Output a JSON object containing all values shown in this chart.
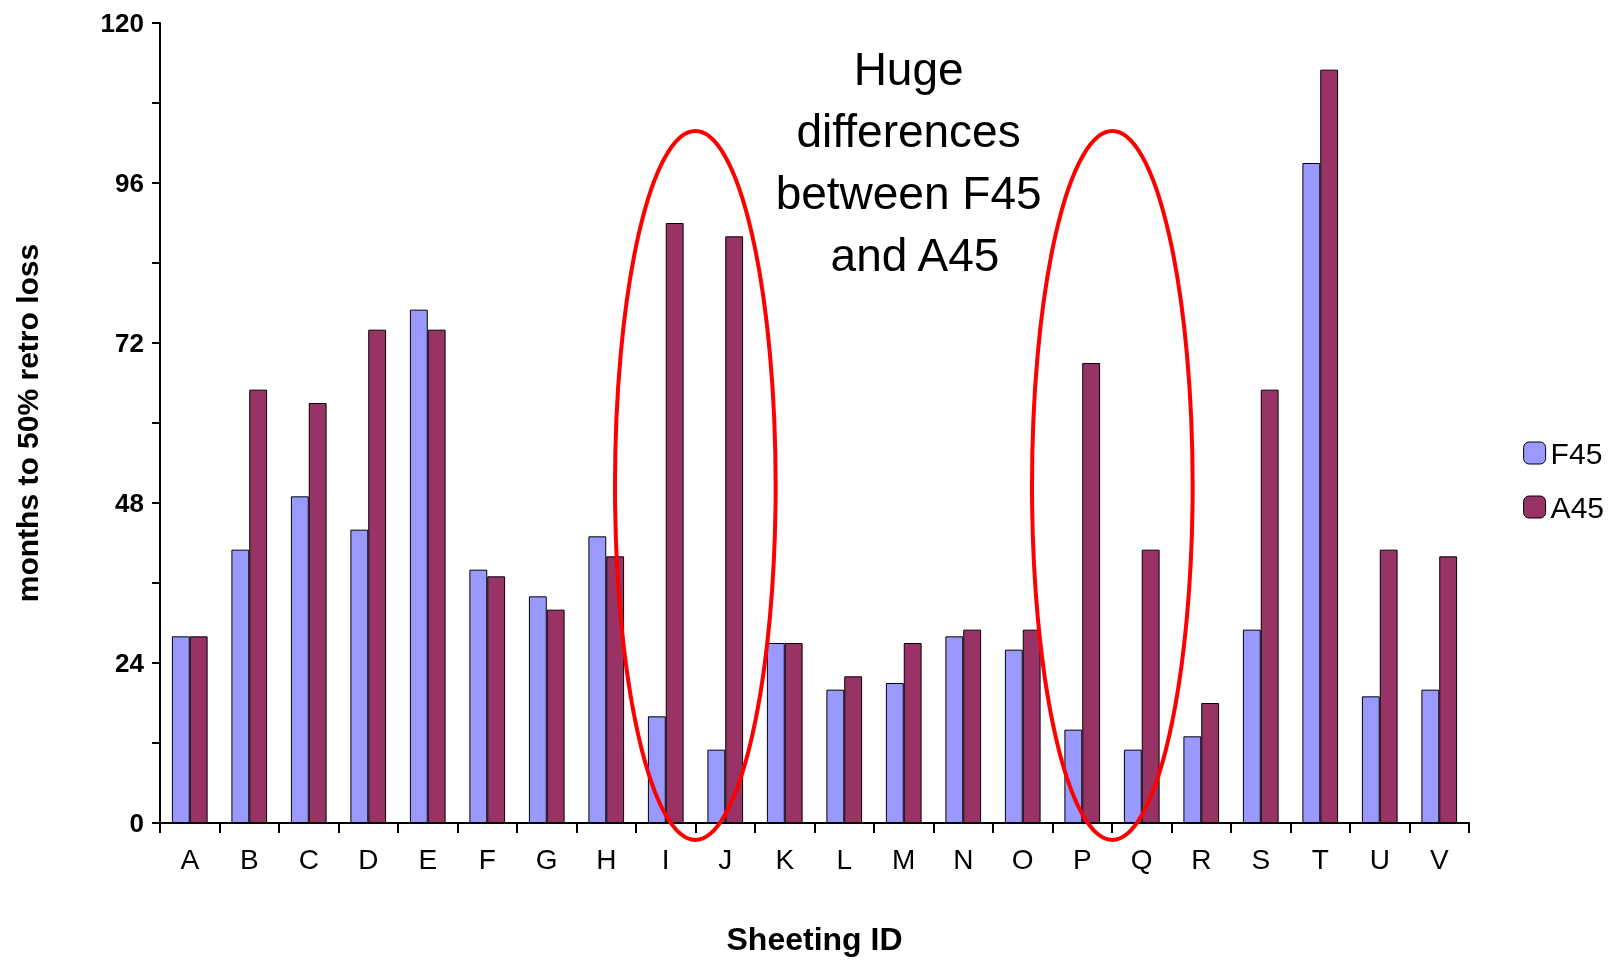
{
  "chart_data": {
    "type": "bar",
    "xlabel": "Sheeting ID",
    "ylabel": "months to 50% retro loss",
    "categories": [
      "A",
      "B",
      "C",
      "D",
      "E",
      "F",
      "G",
      "H",
      "I",
      "J",
      "K",
      "L",
      "M",
      "N",
      "O",
      "P",
      "Q",
      "R",
      "S",
      "T",
      "U",
      "V"
    ],
    "series": [
      {
        "name": "F45",
        "color": "#9999ff",
        "values": [
          28,
          41,
          49,
          44,
          77,
          38,
          34,
          43,
          16,
          11,
          27,
          20,
          21,
          28,
          26,
          14,
          11,
          13,
          29,
          99,
          19,
          20
        ]
      },
      {
        "name": "A45",
        "color": "#993366",
        "values": [
          28,
          65,
          63,
          74,
          74,
          37,
          32,
          40,
          90,
          88,
          27,
          22,
          27,
          29,
          29,
          69,
          41,
          18,
          65,
          113,
          41,
          40
        ]
      }
    ],
    "ylim": [
      0,
      120
    ],
    "yticks": [
      0,
      {
        "value": 12,
        "label": null
      },
      24,
      {
        "value": 36,
        "label": null
      },
      48,
      {
        "value": 60,
        "label": null
      },
      72,
      {
        "value": 84,
        "label": null
      },
      96,
      {
        "value": 108,
        "label": null
      },
      120
    ],
    "annotations": [
      "Huge differences between F45 and A45"
    ],
    "grid": false,
    "legend": "right"
  }
}
